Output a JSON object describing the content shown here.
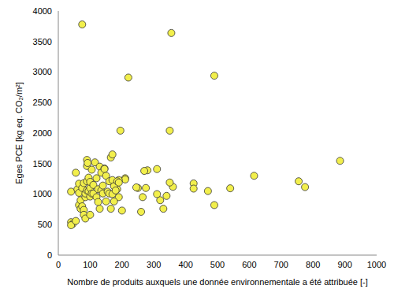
{
  "chart_data": {
    "type": "scatter",
    "x_label": "Nombre de produits auxquels une donnée environnementale a été attribuée [-]",
    "y_label": "Eges PCE [kg eq. CO₂/m²]",
    "x": [
      75,
      355,
      220,
      490,
      195,
      350,
      885,
      755,
      775,
      615,
      540,
      470,
      490,
      425,
      425,
      360,
      350,
      340,
      330,
      320,
      310,
      310,
      280,
      270,
      275,
      265,
      260,
      250,
      245,
      210,
      210,
      200,
      190,
      185,
      190,
      40,
      40,
      45,
      40,
      55,
      55,
      60,
      65,
      65,
      65,
      70,
      70,
      75,
      75,
      80,
      80,
      80,
      85,
      85,
      85,
      90,
      90,
      90,
      90,
      92,
      95,
      95,
      100,
      100,
      100,
      100,
      105,
      105,
      110,
      110,
      115,
      120,
      120,
      125,
      125,
      130,
      130,
      135,
      135,
      140,
      140,
      145,
      145,
      150,
      150,
      155,
      160,
      160,
      165,
      165,
      170,
      170,
      170,
      175,
      175,
      180,
      185,
      190
    ],
    "values": [
      3780,
      3640,
      2910,
      2940,
      2040,
      2040,
      1545,
      1210,
      1115,
      1300,
      1095,
      1050,
      820,
      1175,
      1090,
      1120,
      1190,
      970,
      760,
      900,
      1410,
      1000,
      1390,
      1380,
      1100,
      950,
      710,
      1100,
      1110,
      1260,
      1240,
      730,
      1230,
      1080,
      950,
      1040,
      540,
      510,
      490,
      560,
      1350,
      1080,
      1020,
      1170,
      820,
      900,
      760,
      1100,
      800,
      1180,
      740,
      660,
      950,
      1010,
      600,
      1210,
      1060,
      1460,
      1560,
      1510,
      1050,
      1270,
      960,
      1100,
      660,
      1200,
      1010,
      1400,
      1150,
      1010,
      1520,
      1260,
      950,
      1080,
      870,
      1450,
      760,
      1350,
      1060,
      1010,
      1140,
      1420,
      1410,
      1300,
      880,
      1040,
      1010,
      1210,
      1600,
      760,
      1650,
      1230,
      1000,
      1130,
      880,
      1060,
      1210,
      1190
    ],
    "color": "#f2ef4c",
    "marker": "circle",
    "xlim": [
      0,
      1000
    ],
    "xticks": [
      0,
      100,
      200,
      300,
      400,
      500,
      600,
      700,
      800,
      900,
      1000
    ],
    "ylim": [
      0,
      4000
    ],
    "yticks": [
      0,
      500,
      1000,
      1500,
      2000,
      2500,
      3000,
      3500,
      4000
    ],
    "grid": false
  }
}
